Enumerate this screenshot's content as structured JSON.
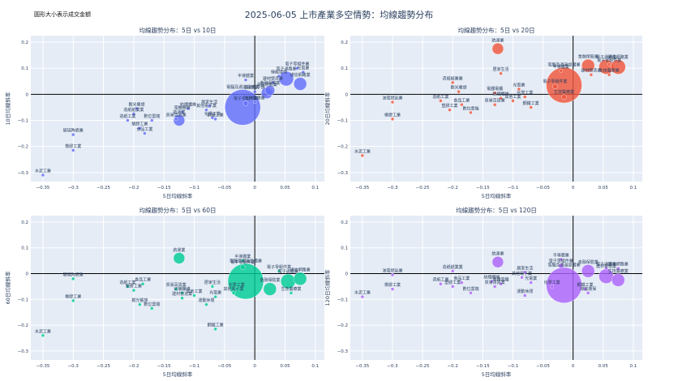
{
  "title": "2025-06-05 上市產業多空情勢：均線趨勢分布",
  "note": "圓形大小表示成交金額",
  "colors": [
    "#636efa",
    "#ef553b",
    "#00cc96",
    "#ab63fa"
  ],
  "chart_data": [
    {
      "type": "scatter",
      "title": "均線趨勢分布：5日 vs 10日",
      "xlabel": "5日均線斜率",
      "ylabel": "10日均線斜率",
      "xlim": [
        -0.37,
        0.115
      ],
      "ylim": [
        -0.335,
        0.225
      ],
      "xticks": [
        -0.35,
        -0.3,
        -0.25,
        -0.2,
        -0.15,
        -0.1,
        -0.05,
        0,
        0.05,
        0.1
      ],
      "xtick_labels": [
        "−0.35",
        "−0.3",
        "−0.25",
        "−0.2",
        "−0.15",
        "−0.1",
        "−0.05",
        "0",
        "0.05",
        "0.1"
      ],
      "yticks": [
        -0.3,
        -0.2,
        -0.1,
        0,
        0.1,
        0.2
      ],
      "ytick_labels": [
        "−0.3",
        "−0.2",
        "−0.1",
        "0",
        "0.1",
        "0.2"
      ],
      "points": [
        {
          "label": "水泥工業",
          "x": -0.35,
          "y": -0.31,
          "size": 2
        },
        {
          "label": "橡膠工業",
          "x": -0.3,
          "y": -0.215,
          "size": 2
        },
        {
          "label": "玻璃陶瓷業",
          "x": -0.3,
          "y": -0.155,
          "size": 2
        },
        {
          "label": "觀光餐旅",
          "x": -0.195,
          "y": -0.055,
          "size": 2
        },
        {
          "label": "造紙紙業業",
          "x": -0.2,
          "y": -0.075,
          "size": 2
        },
        {
          "label": "造紙工業",
          "x": -0.21,
          "y": -0.1,
          "size": 2
        },
        {
          "label": "塑膠工業",
          "x": -0.19,
          "y": -0.13,
          "size": 2
        },
        {
          "label": "食品工業",
          "x": -0.182,
          "y": -0.15,
          "size": 2
        },
        {
          "label": "數位雲端",
          "x": -0.17,
          "y": -0.1,
          "size": 2
        },
        {
          "label": "貿易百貨業",
          "x": -0.13,
          "y": -0.095,
          "size": 2
        },
        {
          "label": "航運業",
          "x": -0.125,
          "y": -0.1,
          "size": 7
        },
        {
          "label": "紡織纖維",
          "x": -0.11,
          "y": -0.055,
          "size": 2
        },
        {
          "label": "電機機械",
          "x": -0.12,
          "y": -0.068,
          "size": 2
        },
        {
          "label": "其他電子業",
          "x": -0.08,
          "y": -0.06,
          "size": 2
        },
        {
          "label": "居家生活",
          "x": -0.075,
          "y": -0.045,
          "size": 2
        },
        {
          "label": "化學工業",
          "x": -0.07,
          "y": -0.09,
          "size": 2
        },
        {
          "label": "鋼鐵工業",
          "x": -0.065,
          "y": -0.095,
          "size": 2
        },
        {
          "label": "電子零組件業",
          "x": -0.015,
          "y": -0.035,
          "size": 3
        },
        {
          "label": "其他電子類",
          "x": 0.0,
          "y": 0.01,
          "size": 2
        },
        {
          "label": "半導體業",
          "x": -0.015,
          "y": 0.055,
          "size": 2
        },
        {
          "label": "油電燃氣業",
          "x": 0.02,
          "y": 0.005,
          "size": 7
        },
        {
          "label": "生技醫療業",
          "x": 0.0,
          "y": -0.03,
          "size": 2
        },
        {
          "label": "電腦及週邊設備業",
          "x": -0.02,
          "y": -0.05,
          "size": 22
        },
        {
          "label": "金融保險業",
          "x": 0.025,
          "y": 0.015,
          "size": 6
        },
        {
          "label": "綠能環保",
          "x": 0.04,
          "y": 0.07,
          "size": 2
        },
        {
          "label": "建材營造業",
          "x": 0.03,
          "y": 0.045,
          "size": 2
        },
        {
          "label": "電子通路業",
          "x": 0.052,
          "y": 0.06,
          "size": 9
        },
        {
          "label": "電子零組件業",
          "x": 0.07,
          "y": 0.1,
          "size": 2
        },
        {
          "label": "通信網路業",
          "x": 0.075,
          "y": 0.04,
          "size": 8
        },
        {
          "label": "光電業",
          "x": 0.08,
          "y": 0.085,
          "size": 2
        }
      ]
    },
    {
      "type": "scatter",
      "title": "均線趨勢分布：5日 vs 20日",
      "xlabel": "5日均線斜率",
      "ylabel": "20日均線斜率",
      "xlim": [
        -0.37,
        0.115
      ],
      "ylim": [
        -0.335,
        0.225
      ],
      "xticks": [
        -0.35,
        -0.3,
        -0.25,
        -0.2,
        -0.15,
        -0.1,
        -0.05,
        0,
        0.05,
        0.1
      ],
      "xtick_labels": [
        "−0.35",
        "−0.3",
        "−0.25",
        "−0.2",
        "−0.15",
        "−0.1",
        "−0.05",
        "0",
        "0.05",
        "0.1"
      ],
      "yticks": [
        -0.3,
        -0.2,
        -0.1,
        0,
        0.1,
        0.2
      ],
      "ytick_labels": [
        "−0.3",
        "−0.2",
        "−0.1",
        "0",
        "0.1",
        "0.2"
      ],
      "points": [
        {
          "label": "水泥工業",
          "x": -0.35,
          "y": -0.235,
          "size": 2
        },
        {
          "label": "橡膠工業",
          "x": -0.3,
          "y": -0.095,
          "size": 2
        },
        {
          "label": "油電燃氣業",
          "x": -0.3,
          "y": -0.03,
          "size": 2
        },
        {
          "label": "造紙紙業業",
          "x": -0.2,
          "y": 0.045,
          "size": 2
        },
        {
          "label": "觀光餐旅",
          "x": -0.19,
          "y": 0.01,
          "size": 2
        },
        {
          "label": "造紙工業",
          "x": -0.22,
          "y": -0.025,
          "size": 2
        },
        {
          "label": "塑膠工業",
          "x": -0.205,
          "y": -0.06,
          "size": 2
        },
        {
          "label": "食品工業",
          "x": -0.185,
          "y": -0.04,
          "size": 2
        },
        {
          "label": "數位雲端",
          "x": -0.17,
          "y": -0.07,
          "size": 2
        },
        {
          "label": "航運業",
          "x": -0.125,
          "y": 0.175,
          "size": 7
        },
        {
          "label": "居家生活",
          "x": -0.12,
          "y": 0.08,
          "size": 2
        },
        {
          "label": "電器電纜",
          "x": -0.13,
          "y": 0.005,
          "size": 2
        },
        {
          "label": "紡織纖維",
          "x": -0.12,
          "y": -0.015,
          "size": 2
        },
        {
          "label": "貿易百貨業",
          "x": -0.13,
          "y": -0.04,
          "size": 2
        },
        {
          "label": "其他工業",
          "x": -0.1,
          "y": -0.025,
          "size": 2
        },
        {
          "label": "光電業",
          "x": -0.09,
          "y": 0.02,
          "size": 2
        },
        {
          "label": "化學工業",
          "x": -0.08,
          "y": -0.01,
          "size": 2
        },
        {
          "label": "鋼鐵工業",
          "x": -0.07,
          "y": -0.05,
          "size": 2
        },
        {
          "label": "電子零組件業",
          "x": -0.03,
          "y": 0.03,
          "size": 3
        },
        {
          "label": "生技醫療業",
          "x": -0.015,
          "y": -0.01,
          "size": 3
        },
        {
          "label": "半導體業",
          "x": -0.02,
          "y": 0.09,
          "size": 2
        },
        {
          "label": "電腦及週邊設備業",
          "x": -0.015,
          "y": 0.035,
          "size": 22
        },
        {
          "label": "建材營造業",
          "x": 0.03,
          "y": 0.075,
          "size": 2
        },
        {
          "label": "金融保險業",
          "x": 0.025,
          "y": 0.11,
          "size": 8
        },
        {
          "label": "電子通路業",
          "x": 0.055,
          "y": 0.105,
          "size": 9
        },
        {
          "label": "電子零組件業",
          "x": 0.06,
          "y": 0.115,
          "size": 2
        },
        {
          "label": "通信網路業",
          "x": 0.075,
          "y": 0.105,
          "size": 9
        },
        {
          "label": "生技醫療業",
          "x": 0.06,
          "y": 0.075,
          "size": 2
        }
      ]
    },
    {
      "type": "scatter",
      "title": "均線趨勢分布：5日 vs 60日",
      "xlabel": "5日均線斜率",
      "ylabel": "60日均線斜率",
      "xlim": [
        -0.37,
        0.115
      ],
      "ylim": [
        -0.335,
        0.225
      ],
      "xticks": [
        -0.35,
        -0.3,
        -0.25,
        -0.2,
        -0.15,
        -0.1,
        -0.05,
        0,
        0.05,
        0.1
      ],
      "xtick_labels": [
        "−0.35",
        "−0.3",
        "−0.25",
        "−0.2",
        "−0.15",
        "−0.1",
        "−0.05",
        "0",
        "0.05",
        "0.1"
      ],
      "yticks": [
        -0.3,
        -0.2,
        -0.1,
        0,
        0.1,
        0.2
      ],
      "ytick_labels": [
        "−0.3",
        "−0.2",
        "−0.1",
        "0",
        "0.1",
        "0.2"
      ],
      "points": [
        {
          "label": "水泥工業",
          "x": -0.35,
          "y": -0.24,
          "size": 2
        },
        {
          "label": "橡膠工業",
          "x": -0.3,
          "y": -0.105,
          "size": 2
        },
        {
          "label": "玻璃陶瓷業",
          "x": -0.3,
          "y": -0.02,
          "size": 2
        },
        {
          "label": "食品工業",
          "x": -0.185,
          "y": -0.04,
          "size": 2
        },
        {
          "label": "造紙工業",
          "x": -0.21,
          "y": -0.05,
          "size": 2
        },
        {
          "label": "塑膠工業",
          "x": -0.2,
          "y": -0.065,
          "size": 2
        },
        {
          "label": "觀光餐旅",
          "x": -0.19,
          "y": -0.12,
          "size": 2
        },
        {
          "label": "數位雲端",
          "x": -0.17,
          "y": -0.135,
          "size": 2
        },
        {
          "label": "航運業",
          "x": -0.125,
          "y": 0.06,
          "size": 7
        },
        {
          "label": "貿易百貨業",
          "x": -0.13,
          "y": -0.06,
          "size": 2
        },
        {
          "label": "紡織纖維",
          "x": -0.12,
          "y": -0.075,
          "size": 2
        },
        {
          "label": "其他工業",
          "x": -0.1,
          "y": -0.085,
          "size": 2
        },
        {
          "label": "建材營造業",
          "x": -0.12,
          "y": -0.095,
          "size": 2
        },
        {
          "label": "居家生活",
          "x": -0.07,
          "y": -0.05,
          "size": 2
        },
        {
          "label": "光電業",
          "x": -0.065,
          "y": -0.09,
          "size": 2
        },
        {
          "label": "運動休閒",
          "x": -0.08,
          "y": -0.12,
          "size": 2
        },
        {
          "label": "鋼鐵工業",
          "x": -0.065,
          "y": -0.215,
          "size": 2
        },
        {
          "label": "半導體業",
          "x": -0.02,
          "y": 0.05,
          "size": 2
        },
        {
          "label": "電子零組件業",
          "x": -0.02,
          "y": 0.025,
          "size": 3
        },
        {
          "label": "電腦及週邊設備業",
          "x": -0.015,
          "y": -0.03,
          "size": 22
        },
        {
          "label": "化學工業",
          "x": -0.03,
          "y": -0.06,
          "size": 2
        },
        {
          "label": "其他電子業",
          "x": -0.035,
          "y": -0.075,
          "size": 2
        },
        {
          "label": "金融保險業",
          "x": 0.025,
          "y": -0.06,
          "size": 8
        },
        {
          "label": "電子通路業",
          "x": 0.055,
          "y": -0.03,
          "size": 9
        },
        {
          "label": "通信網路業",
          "x": 0.075,
          "y": -0.02,
          "size": 8
        },
        {
          "label": "生技醫療業",
          "x": 0.06,
          "y": -0.075,
          "size": 2
        },
        {
          "label": "電子零組件業",
          "x": 0.04,
          "y": 0.01,
          "size": 2
        }
      ]
    },
    {
      "type": "scatter",
      "title": "均線趨勢分布：5日 vs 120日",
      "xlabel": "5日均線斜率",
      "ylabel": "120日均線斜率",
      "xlim": [
        -0.37,
        0.115
      ],
      "ylim": [
        -0.335,
        0.225
      ],
      "xticks": [
        -0.35,
        -0.3,
        -0.25,
        -0.2,
        -0.15,
        -0.1,
        -0.05,
        0,
        0.05,
        0.1
      ],
      "xtick_labels": [
        "−0.35",
        "−0.3",
        "−0.25",
        "−0.2",
        "−0.15",
        "−0.1",
        "−0.05",
        "0",
        "0.05",
        "0.1"
      ],
      "yticks": [
        -0.3,
        -0.2,
        -0.1,
        0,
        0.1,
        0.2
      ],
      "ytick_labels": [
        "−0.3",
        "−0.2",
        "−0.1",
        "0",
        "0.1",
        "0.2"
      ],
      "points": [
        {
          "label": "水泥工業",
          "x": -0.35,
          "y": -0.09,
          "size": 2
        },
        {
          "label": "橡膠工業",
          "x": -0.3,
          "y": -0.06,
          "size": 2
        },
        {
          "label": "油電燃氣業",
          "x": -0.3,
          "y": -0.005,
          "size": 2
        },
        {
          "label": "造紙紙業業",
          "x": -0.2,
          "y": 0.01,
          "size": 2
        },
        {
          "label": "造紙工業",
          "x": -0.22,
          "y": -0.04,
          "size": 2
        },
        {
          "label": "塑膠工業",
          "x": -0.2,
          "y": -0.05,
          "size": 2
        },
        {
          "label": "食品工業",
          "x": -0.185,
          "y": -0.035,
          "size": 2
        },
        {
          "label": "數位雲端",
          "x": -0.17,
          "y": -0.075,
          "size": 2
        },
        {
          "label": "航運業",
          "x": -0.125,
          "y": 0.045,
          "size": 7
        },
        {
          "label": "紡織纖維",
          "x": -0.135,
          "y": -0.03,
          "size": 2
        },
        {
          "label": "貿易百貨業",
          "x": -0.13,
          "y": -0.05,
          "size": 2
        },
        {
          "label": "電器電纜",
          "x": -0.12,
          "y": -0.04,
          "size": 2
        },
        {
          "label": "居家生活",
          "x": -0.08,
          "y": 0.005,
          "size": 2
        },
        {
          "label": "其他電子業",
          "x": -0.085,
          "y": -0.015,
          "size": 2
        },
        {
          "label": "光電業",
          "x": -0.07,
          "y": -0.035,
          "size": 2
        },
        {
          "label": "運動休閒",
          "x": -0.08,
          "y": -0.085,
          "size": 2
        },
        {
          "label": "半導體業",
          "x": -0.02,
          "y": 0.055,
          "size": 2
        },
        {
          "label": "電子零組件業",
          "x": -0.02,
          "y": 0.03,
          "size": 3
        },
        {
          "label": "電腦及週邊設備業",
          "x": -0.015,
          "y": -0.045,
          "size": 22
        },
        {
          "label": "化學工業",
          "x": -0.035,
          "y": -0.05,
          "size": 2
        },
        {
          "label": "金融保險業",
          "x": 0.025,
          "y": 0.01,
          "size": 8
        },
        {
          "label": "電子通路業",
          "x": 0.055,
          "y": 0.02,
          "size": 2
        },
        {
          "label": "通信網路業",
          "x": 0.075,
          "y": 0.02,
          "size": 2
        },
        {
          "label": "建材營造業",
          "x": 0.055,
          "y": -0.01,
          "size": 9
        },
        {
          "label": "生技醫療業",
          "x": 0.075,
          "y": -0.025,
          "size": 8
        },
        {
          "label": "鋼鐵工業",
          "x": 0.02,
          "y": -0.06,
          "size": 2
        },
        {
          "label": "綠能環保",
          "x": 0.025,
          "y": -0.075,
          "size": 2
        }
      ]
    }
  ]
}
